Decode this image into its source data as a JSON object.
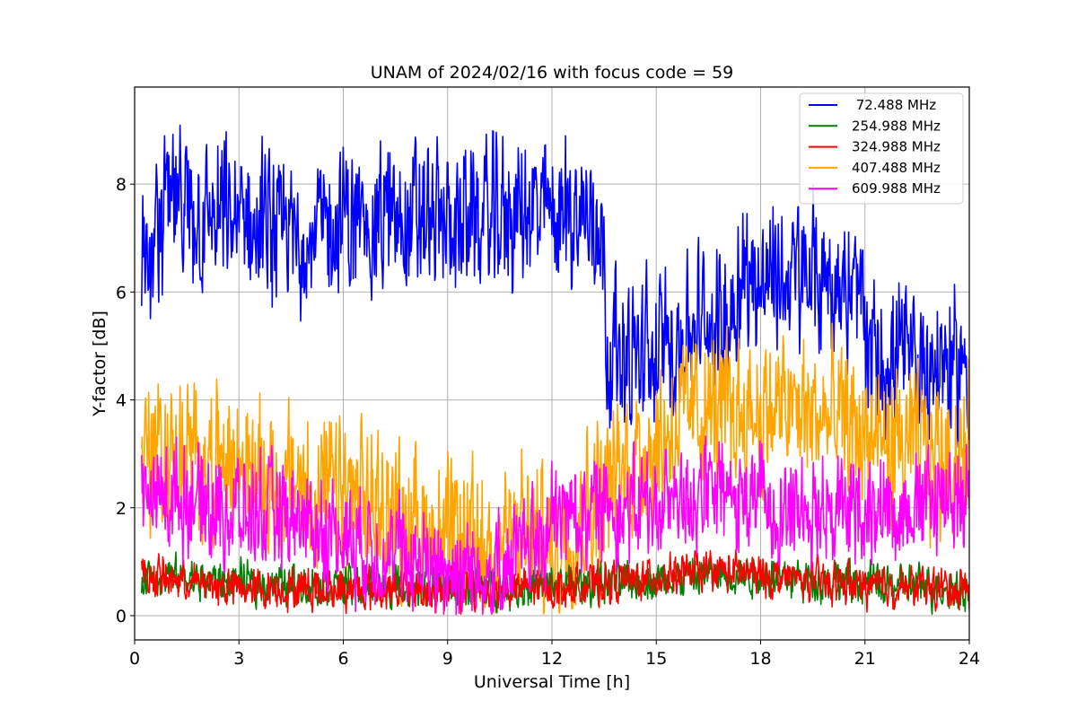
{
  "chart_data": {
    "type": "line",
    "title": "UNAM of 2024/02/16 with focus code = 59",
    "xlabel": "Universal Time [h]",
    "ylabel": "Y-factor [dB]",
    "xlim": [
      0,
      24
    ],
    "ylim": [
      -0.45,
      9.8
    ],
    "xticks": [
      0,
      3,
      6,
      9,
      12,
      15,
      18,
      21,
      24
    ],
    "yticks": [
      0,
      2,
      4,
      6,
      8
    ],
    "grid": true,
    "legend_position": "top-right",
    "series": [
      {
        "name": " 72.488 MHz",
        "color": "#0000ff",
        "noise": 1.3,
        "points": [
          [
            0.2,
            6.6
          ],
          [
            0.8,
            6.9
          ],
          [
            0.85,
            7.8
          ],
          [
            1.5,
            7.3
          ],
          [
            3,
            7.3
          ],
          [
            4.5,
            7.0
          ],
          [
            6,
            7.3
          ],
          [
            7.5,
            7.4
          ],
          [
            9,
            7.3
          ],
          [
            10.5,
            7.4
          ],
          [
            12,
            7.5
          ],
          [
            13.4,
            7.4
          ],
          [
            13.6,
            5.0
          ],
          [
            14.5,
            4.7
          ],
          [
            15.5,
            5.1
          ],
          [
            16.5,
            5.4
          ],
          [
            17.2,
            5.6
          ],
          [
            17.25,
            6.3
          ],
          [
            18.5,
            6.3
          ],
          [
            20,
            6.2
          ],
          [
            20.95,
            5.9
          ],
          [
            21.05,
            4.8
          ],
          [
            22.5,
            4.7
          ],
          [
            24,
            4.7
          ]
        ]
      },
      {
        "name": "254.988 MHz",
        "color": "#008000",
        "noise": 0.35,
        "points": [
          [
            0.2,
            0.75
          ],
          [
            3,
            0.6
          ],
          [
            6,
            0.55
          ],
          [
            9,
            0.5
          ],
          [
            12,
            0.55
          ],
          [
            15,
            0.65
          ],
          [
            16.5,
            0.75
          ],
          [
            18,
            0.75
          ],
          [
            21,
            0.6
          ],
          [
            24,
            0.5
          ]
        ]
      },
      {
        "name": "324.988 MHz",
        "color": "#ff0000",
        "noise": 0.35,
        "points": [
          [
            0.2,
            0.75
          ],
          [
            3,
            0.5
          ],
          [
            6,
            0.5
          ],
          [
            9,
            0.45
          ],
          [
            12,
            0.5
          ],
          [
            15,
            0.7
          ],
          [
            16.5,
            0.85
          ],
          [
            18,
            0.75
          ],
          [
            21,
            0.55
          ],
          [
            24,
            0.5
          ]
        ]
      },
      {
        "name": "407.488 MHz",
        "color": "#ffa500",
        "noise": 1.3,
        "points": [
          [
            0.2,
            3.0
          ],
          [
            1.5,
            2.9
          ],
          [
            3,
            2.8
          ],
          [
            4.5,
            2.4
          ],
          [
            6,
            2.2
          ],
          [
            7.5,
            1.9
          ],
          [
            9,
            1.4
          ],
          [
            10,
            1.3
          ],
          [
            11,
            1.5
          ],
          [
            12,
            1.4
          ],
          [
            12.5,
            1.6
          ],
          [
            13.5,
            2.4
          ],
          [
            14.5,
            3.0
          ],
          [
            16,
            3.8
          ],
          [
            17.5,
            3.8
          ],
          [
            19,
            3.8
          ],
          [
            20.5,
            3.5
          ],
          [
            21.5,
            3.2
          ],
          [
            23,
            3.0
          ],
          [
            24,
            3.0
          ]
        ]
      },
      {
        "name": "609.988 MHz",
        "color": "#ff00ff",
        "noise": 0.95,
        "points": [
          [
            0.2,
            2.2
          ],
          [
            1.5,
            2.2
          ],
          [
            3,
            1.9
          ],
          [
            4.5,
            1.8
          ],
          [
            6,
            1.5
          ],
          [
            7.5,
            1.1
          ],
          [
            9,
            0.9
          ],
          [
            10.5,
            0.8
          ],
          [
            11.5,
            1.4
          ],
          [
            12.5,
            1.9
          ],
          [
            14,
            2.1
          ],
          [
            15,
            2.0
          ],
          [
            16,
            2.3
          ],
          [
            17,
            2.2
          ],
          [
            18,
            2.1
          ],
          [
            19.5,
            2.0
          ],
          [
            21,
            2.0
          ],
          [
            22.5,
            2.1
          ],
          [
            24,
            2.3
          ]
        ]
      }
    ]
  },
  "colors": {
    "grid": "#b0b0b0",
    "axes": "#000000",
    "legend_border": "#cccccc"
  }
}
